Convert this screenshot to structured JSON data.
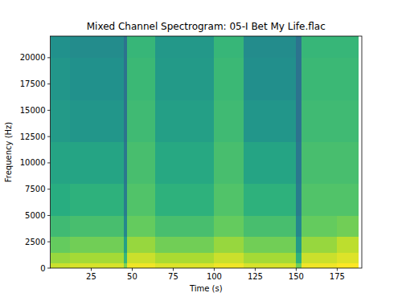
{
  "chart_data": {
    "type": "heatmap",
    "title": "Mixed Channel Spectrogram: 05-I Bet My Life.flac",
    "x_label": "Time (s)",
    "y_label": "Frequency (Hz)",
    "xlim": [
      0,
      190
    ],
    "ylim": [
      0,
      22050
    ],
    "xticks": [
      25,
      50,
      75,
      100,
      125,
      150,
      175
    ],
    "yticks": [
      0,
      2500,
      5000,
      7500,
      10000,
      12500,
      15000,
      17500,
      20000
    ],
    "x_edges": [
      0,
      12,
      45,
      47,
      64,
      100,
      118,
      150,
      153,
      175,
      188
    ],
    "y_edges": [
      0,
      500,
      1500,
      3000,
      5000,
      8000,
      12000,
      16000,
      20000,
      22050
    ],
    "clim": [
      -150,
      -50
    ],
    "cells": [
      [
        -58,
        -56,
        -70,
        -52,
        -55,
        -52,
        -56,
        -72,
        -52,
        -50
      ],
      [
        -66,
        -64,
        -84,
        -58,
        -63,
        -58,
        -64,
        -86,
        -58,
        -55
      ],
      [
        -74,
        -72,
        -94,
        -66,
        -72,
        -66,
        -72,
        -96,
        -66,
        -60
      ],
      [
        -82,
        -80,
        -104,
        -74,
        -80,
        -74,
        -80,
        -104,
        -74,
        -72
      ],
      [
        -88,
        -86,
        -108,
        -78,
        -86,
        -78,
        -86,
        -108,
        -78,
        -78
      ],
      [
        -92,
        -92,
        -110,
        -80,
        -90,
        -80,
        -92,
        -110,
        -80,
        -80
      ],
      [
        -96,
        -98,
        -112,
        -82,
        -94,
        -82,
        -98,
        -112,
        -82,
        -82
      ],
      [
        -98,
        -100,
        -112,
        -83,
        -96,
        -83,
        -101,
        -112,
        -83,
        -83
      ],
      [
        -100,
        -102,
        -112,
        -84,
        -97,
        -84,
        -102,
        -112,
        -84,
        -84
      ]
    ]
  }
}
